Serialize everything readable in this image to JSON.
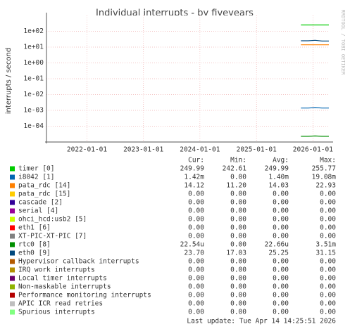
{
  "chart_data": {
    "type": "line",
    "title": "Individual interrupts - by fiveyears",
    "y_label": "interrupts / second",
    "watermark": "RRDTOOL / TOBI OETIKER",
    "log_scale": true,
    "grid": true,
    "ylim": [
      1e-05,
      1000
    ],
    "yticks": [
      {
        "value": 0.0001,
        "label": "1e-04"
      },
      {
        "value": 0.001,
        "label": "1e-03"
      },
      {
        "value": 0.01,
        "label": "1e-02"
      },
      {
        "value": 0.1,
        "label": "1e-01"
      },
      {
        "value": 1,
        "label": "1e+00"
      },
      {
        "value": 10,
        "label": "1e+01"
      },
      {
        "value": 100,
        "label": "1e+02"
      }
    ],
    "xlim": [
      "2021-04-14",
      "2026-04-14"
    ],
    "xticks": [
      "2022-01-01",
      "2023-01-01",
      "2024-01-01",
      "2025-01-01",
      "2026-01-01"
    ],
    "x": [
      "2025-10-15",
      "2025-12-01",
      "2026-01-15",
      "2026-03-01",
      "2026-04-14"
    ],
    "stat_headers": [
      "Cur:",
      "Min:",
      "Avg:",
      "Max:"
    ],
    "series": [
      {
        "name": "timer [0]",
        "color": "#00cc00",
        "values": [
          250,
          250,
          250,
          250,
          250
        ],
        "stats": [
          "249.99",
          "242.61",
          "249.99",
          "255.77"
        ]
      },
      {
        "name": "i8042 [1]",
        "color": "#0066b3",
        "values": [
          0.0014,
          0.0014,
          0.0015,
          0.0014,
          0.0014
        ],
        "stats": [
          "1.42m",
          "0.00",
          "1.40m",
          "19.08m"
        ]
      },
      {
        "name": "pata_rdc [14]",
        "color": "#ff8000",
        "values": [
          14,
          14,
          14,
          14,
          14
        ],
        "stats": [
          "14.12",
          "11.20",
          "14.03",
          "22.93"
        ]
      },
      {
        "name": "pata_rdc [15]",
        "color": "#ffcc00",
        "stats": [
          "0.00",
          "0.00",
          "0.00",
          "0.00"
        ]
      },
      {
        "name": "cascade [2]",
        "color": "#330099",
        "stats": [
          "0.00",
          "0.00",
          "0.00",
          "0.00"
        ]
      },
      {
        "name": "serial [4]",
        "color": "#990099",
        "stats": [
          "0.00",
          "0.00",
          "0.00",
          "0.00"
        ]
      },
      {
        "name": "ohci_hcd:usb2 [5]",
        "color": "#ccff00",
        "stats": [
          "0.00",
          "0.00",
          "0.00",
          "0.00"
        ]
      },
      {
        "name": "eth1 [6]",
        "color": "#ff0000",
        "stats": [
          "0.00",
          "0.00",
          "0.00",
          "0.00"
        ]
      },
      {
        "name": "XT-PIC-XT-PIC [7]",
        "color": "#808080",
        "stats": [
          "0.00",
          "0.00",
          "0.00",
          "0.00"
        ]
      },
      {
        "name": "rtc0 [8]",
        "color": "#008f00",
        "values": [
          2.3e-05,
          2.3e-05,
          2.4e-05,
          2.3e-05,
          2.3e-05
        ],
        "stats": [
          "22.54u",
          "0.00",
          "22.66u",
          "3.51m"
        ]
      },
      {
        "name": "eth0 [9]",
        "color": "#00487d",
        "values": [
          25,
          25,
          27,
          24,
          24
        ],
        "stats": [
          "23.70",
          "17.03",
          "25.25",
          "31.15"
        ]
      },
      {
        "name": "Hypervisor callback interrupts",
        "color": "#b35a00",
        "stats": [
          "0.00",
          "0.00",
          "0.00",
          "0.00"
        ]
      },
      {
        "name": "IRQ work interrupts",
        "color": "#b38f00",
        "stats": [
          "0.00",
          "0.00",
          "0.00",
          "0.00"
        ]
      },
      {
        "name": "Local timer interrupts",
        "color": "#6b006b",
        "stats": [
          "0.00",
          "0.00",
          "0.00",
          "0.00"
        ]
      },
      {
        "name": "Non-maskable interrupts",
        "color": "#8fb300",
        "stats": [
          "0.00",
          "0.00",
          "0.00",
          "0.00"
        ]
      },
      {
        "name": "Performance monitoring interrupts",
        "color": "#b30000",
        "stats": [
          "0.00",
          "0.00",
          "0.00",
          "0.00"
        ]
      },
      {
        "name": "APIC ICR read retries",
        "color": "#bebebe",
        "stats": [
          "0.00",
          "0.00",
          "0.00",
          "0.00"
        ]
      },
      {
        "name": "Spurious interrupts",
        "color": "#80ff80",
        "stats": [
          "0.00",
          "0.00",
          "0.00",
          "0.00"
        ]
      }
    ],
    "last_update": "Last update: Tue Apr 14 14:25:51 2026"
  }
}
